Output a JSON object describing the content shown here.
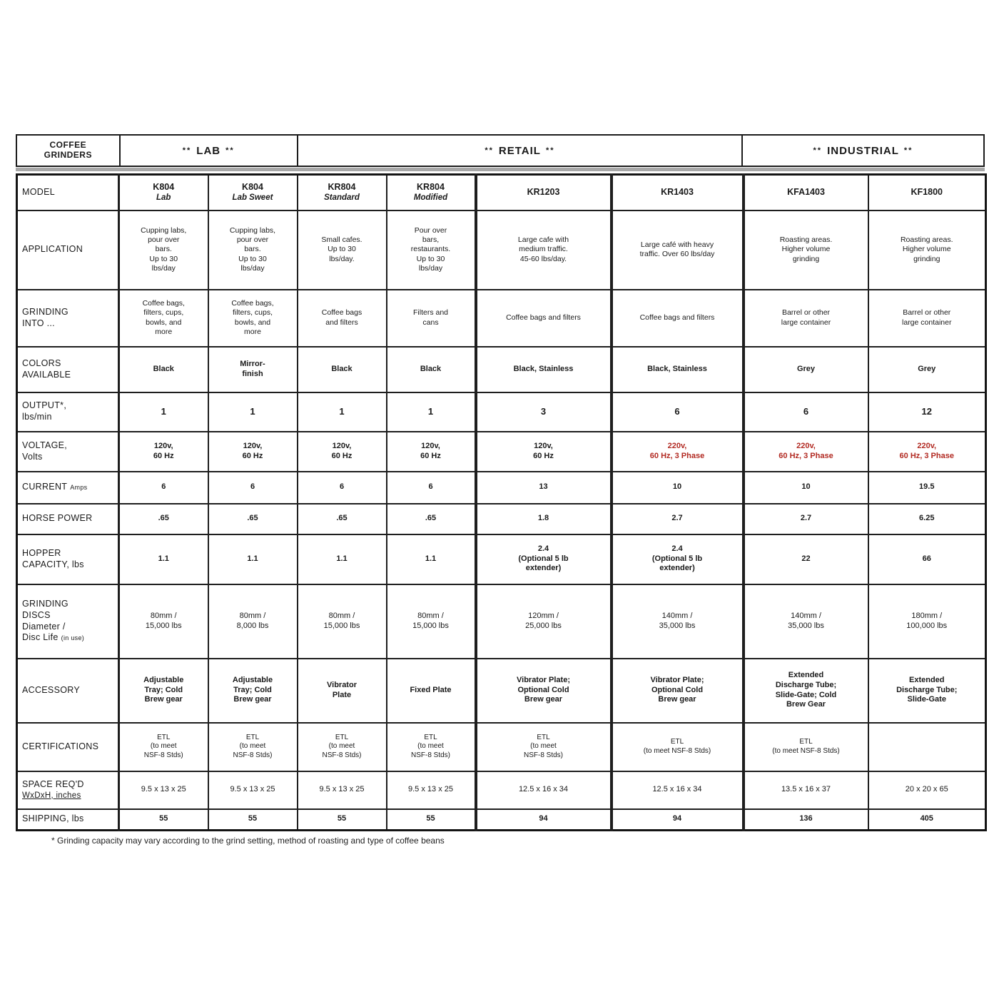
{
  "header": {
    "title": "COFFEE\nGRINDERS",
    "decor": "**",
    "groups": {
      "lab": "LAB",
      "retail": "RETAIL",
      "industrial": "INDUSTRIAL"
    }
  },
  "footnote": "* Grinding capacity may vary according to the grind setting, method of roasting and type of coffee beans",
  "table": {
    "rows": [
      {
        "key": "model",
        "label": "MODEL",
        "type": "model",
        "bold": true,
        "cells": [
          {
            "name": "K804",
            "sub": "Lab"
          },
          {
            "name": "K804",
            "sub": "Lab Sweet"
          },
          {
            "name": "KR804",
            "sub": "Standard"
          },
          {
            "name": "KR804",
            "sub": "Modified"
          },
          {
            "name": "KR1203",
            "sub": ""
          },
          {
            "name": "KR1403",
            "sub": ""
          },
          {
            "name": "KFA1403",
            "sub": ""
          },
          {
            "name": "KF1800",
            "sub": ""
          }
        ]
      },
      {
        "key": "application",
        "label": "APPLICATION",
        "bold": false,
        "cells": [
          "Cupping labs,\npour over\nbars.\nUp to 30\nlbs/day",
          "Cupping labs,\npour over\nbars.\nUp to 30\nlbs/day",
          "Small cafes.\nUp to 30\nlbs/day.",
          "Pour over\nbars,\nrestaurants.\nUp to 30\nlbs/day",
          "Large cafe with\nmedium traffic.\n45-60 lbs/day.",
          "Large café with heavy\ntraffic. Over 60 lbs/day",
          "Roasting areas.\nHigher volume\ngrinding",
          "Roasting areas.\nHigher volume\ngrinding"
        ]
      },
      {
        "key": "grinding-into",
        "label": "GRINDING\nINTO ...",
        "bold": false,
        "cells": [
          "Coffee bags,\nfilters, cups,\nbowls, and\nmore",
          "Coffee bags,\nfilters, cups,\nbowls, and\nmore",
          "Coffee bags\nand filters",
          "Filters and\ncans",
          "Coffee bags and filters",
          "Coffee bags and filters",
          "Barrel or other\nlarge container",
          "Barrel or other\nlarge container"
        ]
      },
      {
        "key": "colors",
        "label": "COLORS\nAVAILABLE",
        "bold": true,
        "cells": [
          "Black",
          "Mirror-\nfinish",
          "Black",
          "Black",
          "Black, Stainless",
          "Black, Stainless",
          "Grey",
          "Grey"
        ]
      },
      {
        "key": "output",
        "label": "OUTPUT*,\nlbs/min",
        "bold": true,
        "cells": [
          "1",
          "1",
          "1",
          "1",
          "3",
          "6",
          "6",
          "12"
        ]
      },
      {
        "key": "voltage",
        "label": "VOLTAGE,\nVolts",
        "bold": true,
        "cells": [
          "120v,\n60 Hz",
          "120v,\n60 Hz",
          "120v,\n60 Hz",
          "120v,\n60 Hz",
          "120v,\n60 Hz",
          {
            "t": "220v,\n60 Hz, 3 Phase",
            "red": true
          },
          {
            "t": "220v,\n60 Hz, 3 Phase",
            "red": true
          },
          {
            "t": "220v,\n60 Hz, 3 Phase",
            "red": true
          }
        ]
      },
      {
        "key": "current",
        "label": "CURRENT",
        "sub": "Amps",
        "bold": true,
        "cells": [
          "6",
          "6",
          "6",
          "6",
          "13",
          "10",
          "10",
          "19.5"
        ]
      },
      {
        "key": "horse-power",
        "label": "HORSE POWER",
        "bold": true,
        "cells": [
          ".65",
          ".65",
          ".65",
          ".65",
          "1.8",
          "2.7",
          "2.7",
          "6.25"
        ]
      },
      {
        "key": "hopper-capacity",
        "label": "HOPPER\nCAPACITY, lbs",
        "bold": true,
        "cells": [
          "1.1",
          "1.1",
          "1.1",
          "1.1",
          "2.4\n(Optional 5 lb\nextender)",
          "2.4\n(Optional 5 lb\nextender)",
          "22",
          "66"
        ]
      },
      {
        "key": "grinding-discs",
        "label": "GRINDING\nDISCS\nDiameter /\nDisc Life",
        "sub": "(in use)",
        "bold": false,
        "cells": [
          "80mm /\n15,000 lbs",
          "80mm /\n8,000 lbs",
          "80mm /\n15,000 lbs",
          "80mm /\n15,000 lbs",
          "120mm /\n25,000 lbs",
          "140mm /\n35,000 lbs",
          "140mm /\n35,000 lbs",
          "180mm /\n100,000 lbs"
        ]
      },
      {
        "key": "accessory",
        "label": "ACCESSORY",
        "bold": true,
        "cells": [
          "Adjustable\nTray; Cold\nBrew gear",
          "Adjustable\nTray; Cold\nBrew gear",
          "Vibrator\nPlate",
          "Fixed Plate",
          "Vibrator Plate;\nOptional Cold\nBrew gear",
          "Vibrator Plate;\nOptional Cold\nBrew gear",
          "Extended\nDischarge Tube;\nSlide-Gate; Cold\nBrew Gear",
          "Extended\nDischarge Tube;\nSlide-Gate"
        ]
      },
      {
        "key": "certifications",
        "label": "CERTIFICATIONS",
        "bold": false,
        "cells": [
          "ETL\n(to meet\nNSF-8 Stds)",
          "ETL\n(to meet\nNSF-8 Stds)",
          "ETL\n(to meet\nNSF-8 Stds)",
          "ETL\n(to meet\nNSF-8 Stds)",
          "ETL\n(to meet\nNSF-8 Stds)",
          "ETL\n(to meet NSF-8 Stds)",
          "ETL\n(to meet NSF-8 Stds)",
          ""
        ]
      },
      {
        "key": "space-reqd",
        "label": "SPACE REQ'D",
        "sub": "WxDxH, inches",
        "sub_underline": true,
        "small_block": true,
        "bold": false,
        "cells": [
          "9.5 x 13 x 25",
          "9.5 x 13 x 25",
          "9.5 x 13 x 25",
          "9.5 x 13 x 25",
          "12.5 x 16 x 34",
          "12.5 x 16 x 34",
          "13.5 x 16 x 37",
          "20 x 20 x 65"
        ]
      },
      {
        "key": "shipping",
        "label": "SHIPPING, lbs",
        "bold": true,
        "cells": [
          "55",
          "55",
          "55",
          "55",
          "94",
          "94",
          "136",
          "405"
        ]
      }
    ]
  }
}
